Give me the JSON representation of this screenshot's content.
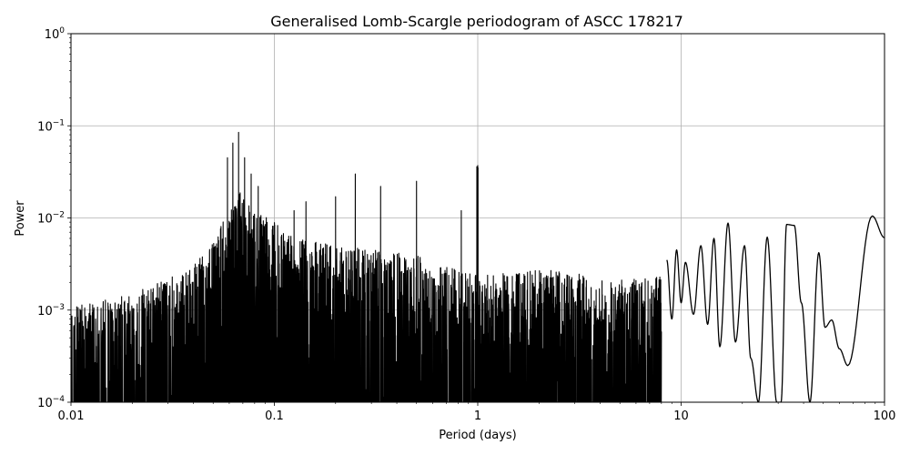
{
  "chart_data": {
    "type": "line",
    "title": "Generalised Lomb-Scargle periodogram of ASCC 178217",
    "xlabel": "Period (days)",
    "ylabel": "Power",
    "xscale": "log",
    "yscale": "log",
    "xlim": [
      0.01,
      100
    ],
    "ylim": [
      0.0001,
      1
    ],
    "grid": true,
    "x_ticks": [
      {
        "value": 0.01,
        "label": "0.01"
      },
      {
        "value": 0.1,
        "label": "0.1"
      },
      {
        "value": 1,
        "label": "1"
      },
      {
        "value": 10,
        "label": "10"
      },
      {
        "value": 100,
        "label": "100"
      }
    ],
    "y_ticks": [
      {
        "value": 0.0001,
        "base": "10",
        "exp": "−4"
      },
      {
        "value": 0.001,
        "base": "10",
        "exp": "−3"
      },
      {
        "value": 0.01,
        "base": "10",
        "exp": "−2"
      },
      {
        "value": 0.1,
        "base": "10",
        "exp": "−1"
      },
      {
        "value": 1,
        "base": "10",
        "exp": "0"
      }
    ],
    "line_color": "#000000",
    "noise_floor": 0.0001,
    "envelope": [
      [
        0.01,
        0.0011
      ],
      [
        0.015,
        0.0013
      ],
      [
        0.02,
        0.0015
      ],
      [
        0.03,
        0.0022
      ],
      [
        0.04,
        0.003
      ],
      [
        0.05,
        0.006
      ],
      [
        0.06,
        0.012
      ],
      [
        0.065,
        0.02
      ],
      [
        0.07,
        0.018
      ],
      [
        0.08,
        0.013
      ],
      [
        0.1,
        0.009
      ],
      [
        0.13,
        0.006
      ],
      [
        0.2,
        0.005
      ],
      [
        0.3,
        0.0045
      ],
      [
        0.5,
        0.004
      ],
      [
        0.7,
        0.003
      ],
      [
        1.0,
        0.0025
      ],
      [
        1.5,
        0.0025
      ],
      [
        2.0,
        0.0028
      ],
      [
        3.0,
        0.0025
      ],
      [
        5.0,
        0.0022
      ],
      [
        8.0,
        0.0025
      ]
    ],
    "spikes": [
      [
        0.0667,
        0.085
      ],
      [
        0.0625,
        0.065
      ],
      [
        0.0588,
        0.045
      ],
      [
        0.0714,
        0.045
      ],
      [
        0.0769,
        0.03
      ],
      [
        0.0833,
        0.022
      ],
      [
        0.125,
        0.012
      ],
      [
        0.143,
        0.015
      ],
      [
        0.2,
        0.017
      ],
      [
        0.25,
        0.03
      ],
      [
        0.333,
        0.022
      ],
      [
        0.5,
        0.025
      ],
      [
        0.99,
        0.036
      ],
      [
        1.0,
        0.037
      ],
      [
        1.003,
        0.035
      ],
      [
        0.83,
        0.012
      ]
    ],
    "smooth_peaks": [
      [
        8.5,
        0.0035
      ],
      [
        9.5,
        0.0045
      ],
      [
        10.5,
        0.0033
      ],
      [
        12.5,
        0.005
      ],
      [
        14.5,
        0.006
      ],
      [
        17.0,
        0.0088
      ],
      [
        20.5,
        0.005
      ],
      [
        26.5,
        0.0062
      ],
      [
        33.0,
        0.0085
      ],
      [
        36.0,
        0.0083
      ],
      [
        47.5,
        0.0042
      ],
      [
        55.0,
        0.00078
      ],
      [
        87.0,
        0.0105
      ]
    ],
    "smooth_dips": [
      [
        9.0,
        0.0008
      ],
      [
        10.0,
        0.0012
      ],
      [
        11.5,
        0.0009
      ],
      [
        13.5,
        0.0007
      ],
      [
        15.5,
        0.0004
      ],
      [
        18.5,
        0.00045
      ],
      [
        22.0,
        0.0003
      ],
      [
        24.0,
        0.0001
      ],
      [
        29.5,
        0.0001
      ],
      [
        31.0,
        0.0001
      ],
      [
        39.0,
        0.0012
      ],
      [
        43.0,
        0.0001
      ],
      [
        51.0,
        0.00065
      ],
      [
        60.0,
        0.00038
      ],
      [
        66.0,
        0.00025
      ],
      [
        100.0,
        0.0061
      ]
    ]
  }
}
